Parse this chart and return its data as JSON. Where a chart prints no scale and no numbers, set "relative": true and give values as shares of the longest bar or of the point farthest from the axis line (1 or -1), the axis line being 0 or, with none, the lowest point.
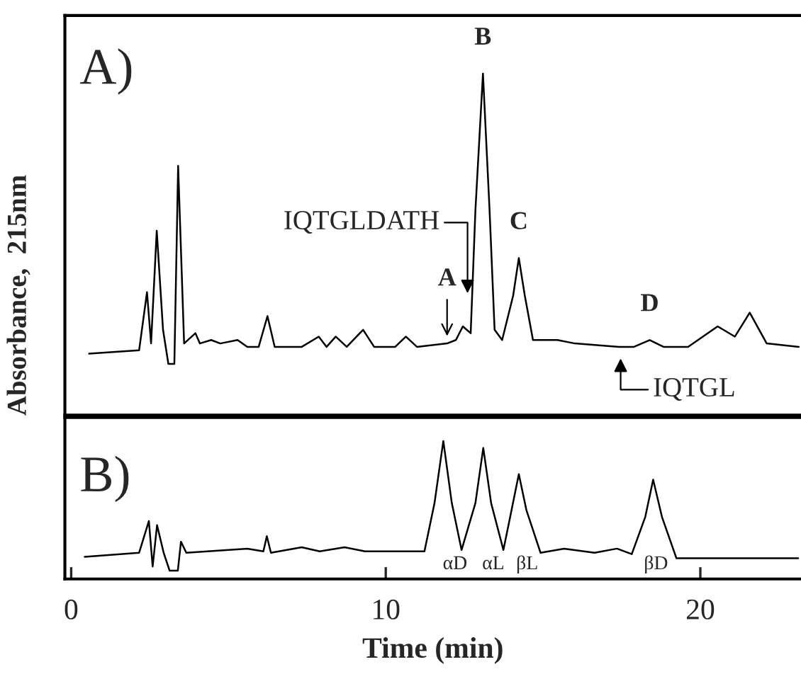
{
  "chart_data": [
    {
      "type": "line",
      "relative": true,
      "ylabel": "Absorbance,  215nm",
      "xlim": [
        -0.2,
        23.2
      ],
      "tick_labels": false,
      "grid": false,
      "legend": false,
      "marker": "none",
      "line_style": "solid",
      "annotations": [
        "A)",
        {
          "text": "B",
          "x": 13.09,
          "y": 1.0
        },
        {
          "text": "C",
          "x": 14.23,
          "y": 0.46
        },
        {
          "text": "D",
          "x": 18.39,
          "y": 0.22
        },
        {
          "text": "A",
          "x": 11.95,
          "y": 0.21
        },
        "IQTGLDATH",
        "IQTGL"
      ],
      "series": [
        {
          "color": "#000000",
          "x": [
            0.57,
            2.16,
            2.41,
            2.54,
            2.72,
            2.92,
            3.09,
            3.28,
            3.4,
            3.59,
            3.95,
            4.09,
            4.45,
            4.74,
            5.29,
            5.6,
            5.96,
            6.24,
            6.47,
            7.33,
            7.87,
            8.12,
            8.41,
            8.76,
            9.28,
            9.63,
            10.3,
            10.64,
            10.99,
            11.95,
            12.23,
            12.45,
            12.7,
            12.85,
            13.09,
            13.3,
            13.46,
            13.7,
            14.05,
            14.23,
            14.42,
            14.68,
            15.46,
            16.01,
            17.42,
            17.89,
            18.39,
            18.83,
            19.61,
            20.55,
            21.1,
            21.57,
            22.11,
            23.13
          ],
          "values": [
            0.18,
            0.19,
            0.36,
            0.21,
            0.54,
            0.25,
            0.15,
            0.15,
            0.73,
            0.21,
            0.24,
            0.21,
            0.22,
            0.21,
            0.22,
            0.2,
            0.2,
            0.29,
            0.2,
            0.2,
            0.23,
            0.2,
            0.23,
            0.2,
            0.25,
            0.2,
            0.2,
            0.23,
            0.2,
            0.21,
            0.22,
            0.26,
            0.24,
            0.6,
            1.0,
            0.6,
            0.25,
            0.22,
            0.35,
            0.46,
            0.35,
            0.22,
            0.22,
            0.21,
            0.2,
            0.2,
            0.22,
            0.2,
            0.2,
            0.26,
            0.23,
            0.3,
            0.21,
            0.2
          ]
        }
      ]
    },
    {
      "type": "line",
      "relative": true,
      "xlabel": "Time (min)",
      "xlim": [
        -0.2,
        23.2
      ],
      "xticks": [
        0,
        10,
        20
      ],
      "tick_labels": "x",
      "grid": false,
      "legend": false,
      "marker": "none",
      "line_style": "solid",
      "annotations": [
        "B)",
        "αD",
        "αL",
        "βL",
        "βD"
      ],
      "series": [
        {
          "color": "#000000",
          "x": [
            0.43,
            2.16,
            2.47,
            2.59,
            2.73,
            2.94,
            3.13,
            3.39,
            3.49,
            3.66,
            5.6,
            6.11,
            6.22,
            6.35,
            7.33,
            7.9,
            8.69,
            9.34,
            11.23,
            11.55,
            11.83,
            12.1,
            12.41,
            12.85,
            13.1,
            13.35,
            13.74,
            14.0,
            14.23,
            14.47,
            14.92,
            15.67,
            16.64,
            17.35,
            17.82,
            18.25,
            18.5,
            18.78,
            19.24,
            23.11
          ],
          "values": [
            0.16,
            0.19,
            0.42,
            0.09,
            0.39,
            0.19,
            0.06,
            0.06,
            0.27,
            0.19,
            0.22,
            0.2,
            0.31,
            0.19,
            0.23,
            0.2,
            0.23,
            0.2,
            0.2,
            0.55,
            1.0,
            0.55,
            0.21,
            0.55,
            0.95,
            0.55,
            0.21,
            0.5,
            0.76,
            0.5,
            0.19,
            0.22,
            0.19,
            0.22,
            0.18,
            0.45,
            0.72,
            0.45,
            0.15,
            0.15
          ]
        }
      ]
    }
  ]
}
